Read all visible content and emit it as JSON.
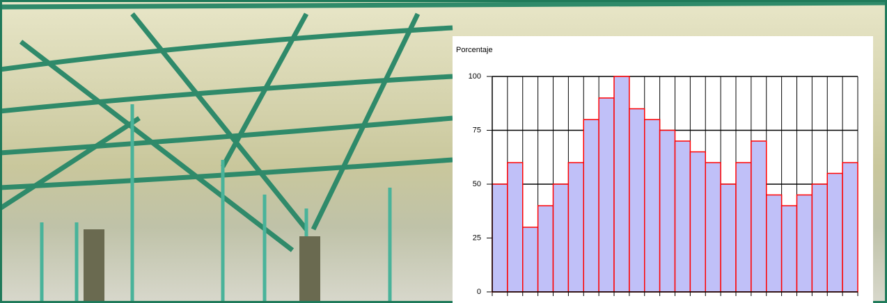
{
  "chart_data": {
    "type": "bar",
    "title": "Porcentaje",
    "values": [
      50,
      60,
      30,
      40,
      50,
      60,
      80,
      90,
      100,
      85,
      80,
      75,
      70,
      65,
      60,
      50,
      60,
      70,
      45,
      40,
      45,
      50,
      55,
      60
    ],
    "color": "#c0c0f8",
    "edge_color": "#ff0000",
    "ylim": [
      0,
      100
    ],
    "yticks": [
      0,
      25,
      50,
      75,
      100
    ],
    "grid": true
  }
}
